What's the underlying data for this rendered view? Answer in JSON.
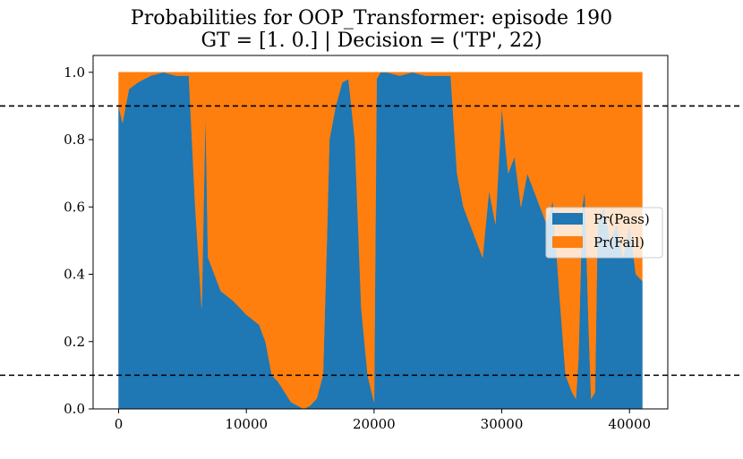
{
  "chart_data": {
    "type": "area",
    "stacked": true,
    "title": "Probabilities for OOP_Transformer: episode 190",
    "subtitle": "GT = [1. 0.] | Decision = ('TP', 22)",
    "xlim": [
      -2000,
      43000
    ],
    "ylim": [
      0.0,
      1.05
    ],
    "xticks": [
      0,
      10000,
      20000,
      30000,
      40000
    ],
    "yticks": [
      "0.0",
      "0.2",
      "0.4",
      "0.6",
      "0.8",
      "1.0"
    ],
    "grid": false,
    "legend_placement": "center-right",
    "thresholds": [
      0.9,
      0.1
    ],
    "x": [
      0,
      300,
      800,
      1500,
      2500,
      3500,
      4500,
      5500,
      6000,
      6500,
      6800,
      7000,
      7500,
      8000,
      9000,
      10000,
      11000,
      11500,
      12000,
      12500,
      13000,
      13500,
      14000,
      14500,
      15000,
      15500,
      16000,
      16300,
      16500,
      17000,
      17500,
      18000,
      18500,
      19000,
      19500,
      20000,
      20200,
      20500,
      21000,
      22000,
      23000,
      24000,
      25000,
      26000,
      26500,
      27000,
      28000,
      28500,
      29000,
      29500,
      30000,
      30500,
      31000,
      31500,
      32000,
      32500,
      33000,
      33500,
      34000,
      34500,
      35000,
      35500,
      35800,
      36000,
      36300,
      36500,
      36800,
      37000,
      37300,
      37500,
      38000,
      38500,
      39000,
      39500,
      40000,
      40500,
      41000
    ],
    "series": [
      {
        "name": "Pr(Pass)",
        "color": "#1f77b4",
        "values": [
          0.9,
          0.85,
          0.95,
          0.97,
          0.99,
          1.0,
          0.99,
          0.99,
          0.6,
          0.3,
          0.9,
          0.45,
          0.4,
          0.35,
          0.32,
          0.28,
          0.25,
          0.2,
          0.1,
          0.08,
          0.05,
          0.02,
          0.01,
          0.0,
          0.01,
          0.03,
          0.1,
          0.5,
          0.8,
          0.9,
          0.97,
          0.98,
          0.8,
          0.3,
          0.1,
          0.02,
          0.98,
          1.0,
          1.0,
          0.99,
          1.0,
          0.99,
          0.99,
          0.99,
          0.7,
          0.6,
          0.5,
          0.45,
          0.65,
          0.55,
          0.9,
          0.7,
          0.75,
          0.6,
          0.7,
          0.65,
          0.6,
          0.55,
          0.62,
          0.35,
          0.1,
          0.05,
          0.03,
          0.15,
          0.6,
          0.65,
          0.25,
          0.03,
          0.05,
          0.55,
          0.6,
          0.5,
          0.55,
          0.45,
          0.55,
          0.4,
          0.38
        ]
      },
      {
        "name": "Pr(Fail)",
        "color": "#ff7f0e",
        "values": [
          0.1,
          0.15,
          0.05,
          0.03,
          0.01,
          0.0,
          0.01,
          0.01,
          0.4,
          0.7,
          0.1,
          0.55,
          0.6,
          0.65,
          0.68,
          0.72,
          0.75,
          0.8,
          0.9,
          0.92,
          0.95,
          0.98,
          0.99,
          1.0,
          0.99,
          0.97,
          0.9,
          0.5,
          0.2,
          0.1,
          0.03,
          0.02,
          0.2,
          0.7,
          0.9,
          0.98,
          0.02,
          0.0,
          0.0,
          0.01,
          0.0,
          0.01,
          0.01,
          0.01,
          0.3,
          0.4,
          0.5,
          0.55,
          0.35,
          0.45,
          0.1,
          0.3,
          0.25,
          0.4,
          0.3,
          0.35,
          0.4,
          0.45,
          0.38,
          0.65,
          0.9,
          0.95,
          0.97,
          0.85,
          0.4,
          0.35,
          0.75,
          0.97,
          0.95,
          0.45,
          0.4,
          0.5,
          0.45,
          0.55,
          0.45,
          0.6,
          0.62
        ]
      }
    ]
  }
}
